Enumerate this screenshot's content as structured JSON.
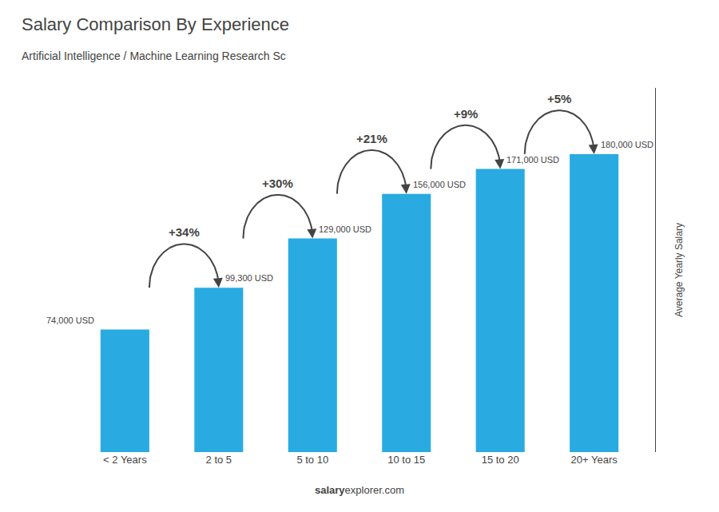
{
  "chart_data": {
    "type": "bar",
    "title": "Salary Comparison By Experience",
    "subtitle": "Artificial Intelligence / Machine Learning Research Sc",
    "ylabel": "Average Yearly Salary",
    "categories": [
      "< 2 Years",
      "2 to 5",
      "5 to 10",
      "10 to 15",
      "15 to 20",
      "20+ Years"
    ],
    "values": [
      74000,
      99300,
      129000,
      156000,
      171000,
      180000
    ],
    "value_labels": [
      "74,000 USD",
      "99,300 USD",
      "129,000 USD",
      "156,000 USD",
      "171,000 USD",
      "180,000 USD"
    ],
    "data_labels": true,
    "annotations": [
      "+34%",
      "+30%",
      "+21%",
      "+9%",
      "+5%"
    ],
    "watermark": [
      "salary",
      "explorer.com"
    ],
    "color": "#29ABE2",
    "ylim": [
      0,
      220000
    ],
    "grid": false,
    "tick_labels": "x"
  }
}
